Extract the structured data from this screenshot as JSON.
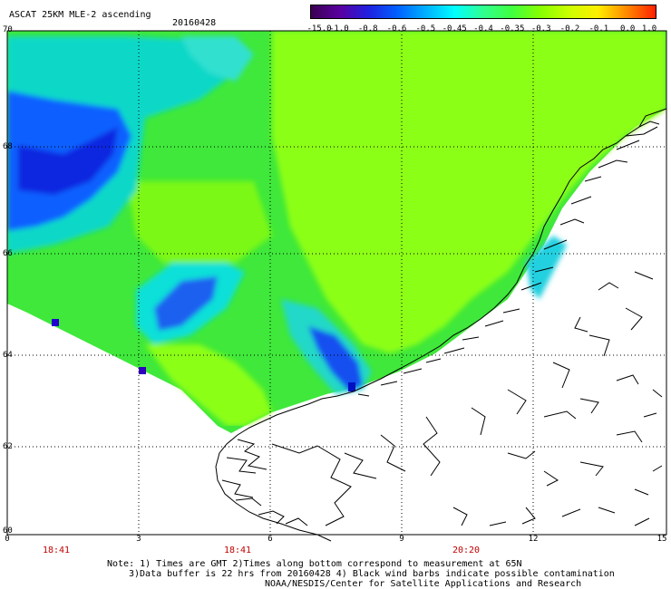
{
  "header": {
    "title": "ASCAT 25KM MLE-2 ascending",
    "date": "20160428"
  },
  "colorbar": {
    "labels": [
      "-15.0",
      "-1.0",
      "-0.8",
      "-0.6",
      "-0.5",
      "-0.45",
      "-0.4",
      "-0.35",
      "-0.3",
      "-0.2",
      "-0.1",
      "0.0",
      "1.0"
    ],
    "colors": [
      "#3a0050",
      "#5a00a0",
      "#2020e0",
      "#0060ff",
      "#00b0ff",
      "#00ffff",
      "#30ff90",
      "#40ff40",
      "#88ff00",
      "#ccff00",
      "#ffee00",
      "#ff8800",
      "#ff2000"
    ]
  },
  "axes": {
    "lat_labels": [
      "70",
      "68",
      "66",
      "64",
      "62",
      "60"
    ],
    "lon_labels": [
      "0",
      "3",
      "6",
      "9",
      "12",
      "15"
    ],
    "time_labels": [
      "18:41",
      "18:41",
      "20:20"
    ]
  },
  "colors": {
    "green": "#30e030",
    "lime": "#90ff10",
    "cyan": "#00ffff",
    "blue": "#0050ff",
    "darkblue": "#0000c0",
    "time_red": "#c00000"
  },
  "notes": {
    "line1": "Note: 1) Times are GMT 2)Times along bottom correspond to measurement at 65N",
    "line2": "3)Data buffer is 22 hrs from 20160428 4) Black wind barbs indicate possible contamination",
    "line3": "NOAA/NESDIS/Center for Satellite Applications and Research"
  }
}
